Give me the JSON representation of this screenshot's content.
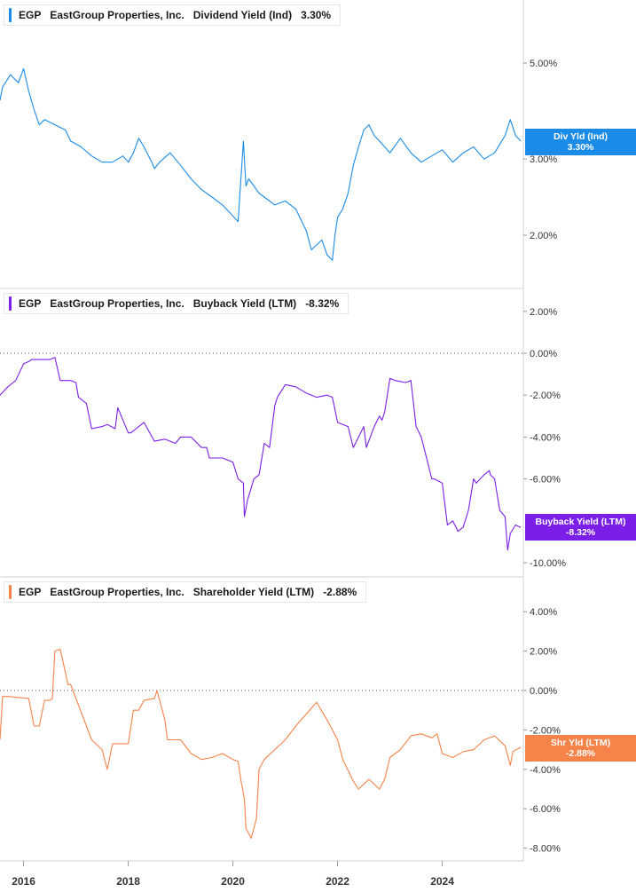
{
  "panels": [
    {
      "ticker": "EGP",
      "company": "EastGroup Properties, Inc.",
      "metric": "Dividend Yield (Ind)",
      "current_value": "3.30%",
      "badge_line1": "Div Yld (Ind)",
      "badge_line2": "3.30%",
      "color": "#1a8ce8",
      "y_ticks": [
        "5.00%",
        "3.00%",
        "2.00%"
      ]
    },
    {
      "ticker": "EGP",
      "company": "EastGroup Properties, Inc.",
      "metric": "Buyback Yield (LTM)",
      "current_value": "-8.32%",
      "badge_line1": "Buyback Yield (LTM)",
      "badge_line2": "-8.32%",
      "color": "#7b1fe8",
      "y_ticks": [
        "2.00%",
        "0.00%",
        "-2.00%",
        "-4.00%",
        "-6.00%",
        "-10.00%"
      ]
    },
    {
      "ticker": "EGP",
      "company": "EastGroup Properties, Inc.",
      "metric": "Shareholder Yield (LTM)",
      "current_value": "-2.88%",
      "badge_line1": "Shr Yld (LTM)",
      "badge_line2": "-2.88%",
      "color": "#f5834a",
      "y_ticks": [
        "4.00%",
        "2.00%",
        "0.00%",
        "-2.00%",
        "-4.00%",
        "-6.00%",
        "-8.00%"
      ]
    }
  ],
  "x_axis": {
    "ticks": [
      "2016",
      "2018",
      "2020",
      "2022",
      "2024"
    ]
  },
  "chart_data": [
    {
      "type": "line",
      "title": "EGP EastGroup Properties, Inc. Dividend Yield (Ind) 3.30%",
      "y_scale": "log",
      "ylim": [
        1.5,
        6.0
      ],
      "x_range": [
        2015.55,
        2025.55
      ],
      "series": [
        {
          "name": "Dividend Yield (Ind)",
          "color": "#1a8ce8",
          "x": [
            2015.55,
            2015.6,
            2015.75,
            2015.9,
            2016.0,
            2016.1,
            2016.2,
            2016.3,
            2016.4,
            2016.6,
            2016.8,
            2016.9,
            2017.1,
            2017.3,
            2017.5,
            2017.7,
            2017.9,
            2018.0,
            2018.1,
            2018.2,
            2018.3,
            2018.45,
            2018.5,
            2018.6,
            2018.8,
            2019.0,
            2019.2,
            2019.4,
            2019.6,
            2019.8,
            2019.95,
            2020.1,
            2020.2,
            2020.22,
            2020.25,
            2020.3,
            2020.4,
            2020.5,
            2020.6,
            2020.8,
            2021.0,
            2021.2,
            2021.4,
            2021.5,
            2021.6,
            2021.7,
            2021.8,
            2021.9,
            2021.95,
            2022.0,
            2022.1,
            2022.2,
            2022.3,
            2022.4,
            2022.5,
            2022.6,
            2022.7,
            2022.8,
            2022.9,
            2023.0,
            2023.2,
            2023.4,
            2023.6,
            2023.8,
            2024.0,
            2024.2,
            2024.4,
            2024.6,
            2024.8,
            2025.0,
            2025.2,
            2025.3,
            2025.4,
            2025.45,
            2025.5
          ],
          "y": [
            4.1,
            4.4,
            4.7,
            4.5,
            4.85,
            4.3,
            3.9,
            3.6,
            3.7,
            3.6,
            3.5,
            3.3,
            3.2,
            3.05,
            2.95,
            2.95,
            3.05,
            2.95,
            3.1,
            3.35,
            3.2,
            2.95,
            2.85,
            2.95,
            3.1,
            2.9,
            2.7,
            2.55,
            2.45,
            2.35,
            2.25,
            2.15,
            3.3,
            3.0,
            2.6,
            2.7,
            2.6,
            2.5,
            2.45,
            2.35,
            2.4,
            2.3,
            2.05,
            1.85,
            1.9,
            1.95,
            1.8,
            1.75,
            2.0,
            2.2,
            2.3,
            2.5,
            2.9,
            3.2,
            3.5,
            3.6,
            3.4,
            3.3,
            3.2,
            3.1,
            3.35,
            3.1,
            2.95,
            3.05,
            3.15,
            2.95,
            3.1,
            3.2,
            3.0,
            3.1,
            3.4,
            3.7,
            3.4,
            3.35,
            3.3
          ]
        }
      ]
    },
    {
      "type": "line",
      "title": "EGP EastGroup Properties, Inc. Buyback Yield (LTM) -8.32%",
      "ylim": [
        -10.5,
        2.5
      ],
      "x_range": [
        2015.55,
        2025.55
      ],
      "series": [
        {
          "name": "Buyback Yield (LTM)",
          "color": "#7b1fe8",
          "x": [
            2015.55,
            2015.7,
            2015.8,
            2015.85,
            2016.0,
            2016.1,
            2016.15,
            2016.4,
            2016.5,
            2016.6,
            2016.7,
            2016.9,
            2017.0,
            2017.05,
            2017.2,
            2017.3,
            2017.5,
            2017.6,
            2017.75,
            2017.8,
            2018.0,
            2018.05,
            2018.3,
            2018.5,
            2018.7,
            2018.9,
            2019.0,
            2019.2,
            2019.4,
            2019.5,
            2019.55,
            2019.8,
            2020.0,
            2020.1,
            2020.2,
            2020.22,
            2020.28,
            2020.4,
            2020.5,
            2020.6,
            2020.7,
            2020.8,
            2020.85,
            2021.0,
            2021.2,
            2021.4,
            2021.6,
            2021.8,
            2021.9,
            2022.0,
            2022.2,
            2022.3,
            2022.5,
            2022.55,
            2022.7,
            2022.8,
            2022.85,
            2022.9,
            2023.0,
            2023.1,
            2023.3,
            2023.4,
            2023.5,
            2023.6,
            2023.7,
            2023.8,
            2023.85,
            2024.0,
            2024.1,
            2024.2,
            2024.3,
            2024.4,
            2024.5,
            2024.6,
            2024.65,
            2024.8,
            2024.9,
            2024.92,
            2025.0,
            2025.1,
            2025.2,
            2025.25,
            2025.3,
            2025.4,
            2025.5
          ],
          "y": [
            -2.0,
            -1.6,
            -1.4,
            -1.3,
            -0.5,
            -0.4,
            -0.3,
            -0.3,
            -0.3,
            -0.2,
            -1.3,
            -1.3,
            -1.4,
            -2.1,
            -2.4,
            -3.6,
            -3.5,
            -3.4,
            -3.6,
            -2.6,
            -3.8,
            -3.8,
            -3.3,
            -4.2,
            -4.1,
            -4.3,
            -4.0,
            -4.0,
            -4.5,
            -4.5,
            -5.0,
            -5.0,
            -5.2,
            -6.0,
            -6.2,
            -7.8,
            -7.0,
            -6.0,
            -5.8,
            -4.3,
            -4.5,
            -2.5,
            -2.1,
            -1.5,
            -1.6,
            -1.9,
            -2.1,
            -2.0,
            -2.1,
            -3.3,
            -3.5,
            -4.5,
            -3.5,
            -4.5,
            -3.5,
            -3.0,
            -3.2,
            -2.8,
            -1.2,
            -1.3,
            -1.4,
            -1.3,
            -3.5,
            -4.0,
            -5.0,
            -6.0,
            -6.0,
            -6.2,
            -8.2,
            -8.0,
            -8.5,
            -8.3,
            -7.5,
            -6.0,
            -6.2,
            -5.8,
            -5.6,
            -5.8,
            -6.0,
            -7.5,
            -7.8,
            -9.4,
            -8.6,
            -8.2,
            -8.32
          ]
        }
      ]
    },
    {
      "type": "line",
      "title": "EGP EastGroup Properties, Inc. Shareholder Yield (LTM) -2.88%",
      "ylim": [
        -8.5,
        4.5
      ],
      "x_range": [
        2015.55,
        2025.55
      ],
      "series": [
        {
          "name": "Shareholder Yield (LTM)",
          "color": "#f5834a",
          "x": [
            2015.55,
            2015.6,
            2015.7,
            2016.1,
            2016.2,
            2016.3,
            2016.4,
            2016.5,
            2016.55,
            2016.6,
            2016.7,
            2016.85,
            2016.9,
            2017.3,
            2017.5,
            2017.6,
            2017.7,
            2018.0,
            2018.1,
            2018.2,
            2018.3,
            2018.5,
            2018.55,
            2018.7,
            2018.75,
            2019.0,
            2019.2,
            2019.4,
            2019.6,
            2019.8,
            2020.0,
            2020.1,
            2020.15,
            2020.22,
            2020.25,
            2020.35,
            2020.45,
            2020.5,
            2020.6,
            2020.8,
            2021.0,
            2021.2,
            2021.4,
            2021.6,
            2021.8,
            2021.9,
            2022.0,
            2022.1,
            2022.3,
            2022.4,
            2022.6,
            2022.8,
            2022.9,
            2023.0,
            2023.2,
            2023.4,
            2023.6,
            2023.8,
            2023.9,
            2024.0,
            2024.2,
            2024.4,
            2024.6,
            2024.8,
            2025.0,
            2025.2,
            2025.3,
            2025.35,
            2025.5
          ],
          "y": [
            -2.5,
            -0.3,
            -0.3,
            -0.4,
            -1.8,
            -1.8,
            -0.5,
            -0.5,
            -0.4,
            2.0,
            2.1,
            0.3,
            0.3,
            -2.5,
            -3.0,
            -4.0,
            -2.7,
            -2.7,
            -1.0,
            -1.0,
            -0.5,
            -0.4,
            0.0,
            -1.5,
            -2.5,
            -2.5,
            -3.2,
            -3.5,
            -3.4,
            -3.2,
            -3.5,
            -3.6,
            -4.5,
            -5.5,
            -7.0,
            -7.5,
            -6.5,
            -4.0,
            -3.5,
            -3.0,
            -2.5,
            -1.8,
            -1.2,
            -0.6,
            -1.5,
            -2.0,
            -2.5,
            -3.5,
            -4.6,
            -5.0,
            -4.5,
            -5.0,
            -4.5,
            -3.4,
            -3.0,
            -2.3,
            -2.2,
            -2.4,
            -2.2,
            -3.2,
            -3.4,
            -3.1,
            -3.0,
            -2.5,
            -2.3,
            -2.8,
            -3.8,
            -3.1,
            -2.88
          ]
        }
      ]
    }
  ]
}
